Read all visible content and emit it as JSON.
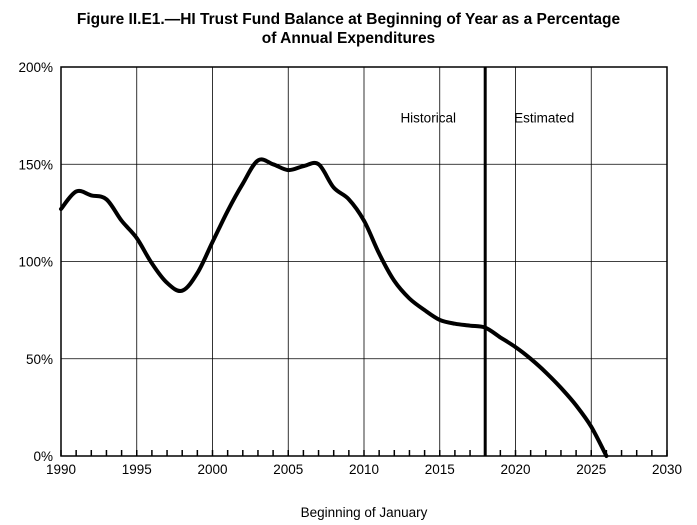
{
  "chart_data": {
    "type": "line",
    "title_line1": "Figure II.E1.—HI Trust Fund Balance at Beginning of Year as a Percentage",
    "title_line2": "of Annual Expenditures",
    "xlabel": "Beginning of January",
    "ylabel": "",
    "xlim": [
      1990,
      2030
    ],
    "ylim": [
      0,
      200
    ],
    "x_ticks": [
      "1990",
      "1995",
      "2000",
      "2005",
      "2010",
      "2015",
      "2020",
      "2025",
      "2030"
    ],
    "y_ticks": [
      "0%",
      "50%",
      "100%",
      "150%",
      "200%"
    ],
    "grid": true,
    "divider_year": 2018,
    "annotations": {
      "historical": "Historical",
      "estimated": "Estimated"
    },
    "series": [
      {
        "x": [
          1990,
          1991,
          1992,
          1993,
          1994,
          1995,
          1996,
          1997,
          1998,
          1999,
          2000,
          2001,
          2002,
          2003,
          2004,
          2005,
          2006,
          2007,
          2008,
          2009,
          2010,
          2011,
          2012,
          2013,
          2014,
          2015,
          2016,
          2017,
          2018,
          2019,
          2020,
          2021,
          2022,
          2023,
          2024,
          2025,
          2026
        ],
        "y": [
          127,
          136,
          134,
          132,
          121,
          112,
          99,
          89,
          85,
          94,
          110,
          126,
          140,
          152,
          150,
          147,
          149,
          150,
          138,
          132,
          121,
          104,
          90,
          81,
          75,
          70,
          68,
          67,
          66,
          61,
          56,
          50,
          43,
          35,
          26,
          15,
          0
        ]
      }
    ]
  }
}
